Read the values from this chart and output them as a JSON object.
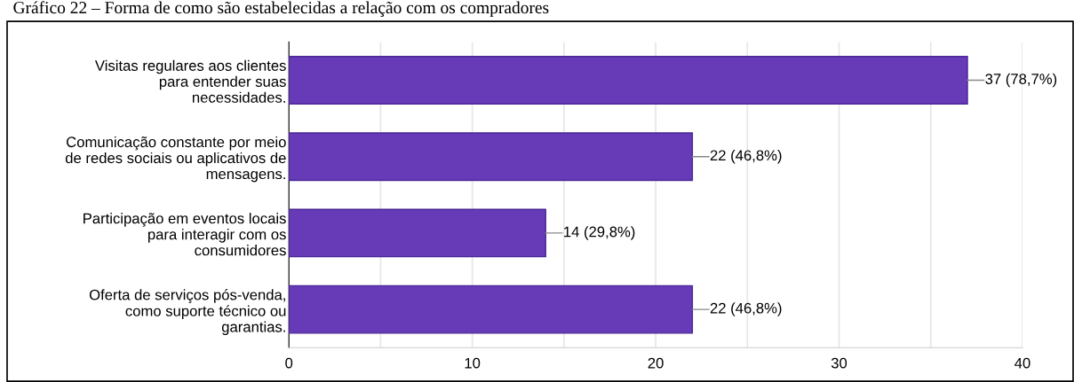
{
  "chart_data": {
    "type": "bar",
    "orientation": "horizontal",
    "title": "Gráfico 22 – Forma de como são estabelecidas a relação com os compradores",
    "categories": [
      "Visitas regulares aos clientes\npara entender suas\nnecessidades.",
      "Comunicação constante por meio\nde redes sociais ou aplicativos de\nmensagens.",
      "Participação em eventos locais\npara interagir com os\nconsumidores",
      "Oferta de serviços pós-venda,\ncomo suporte técnico ou\ngarantias."
    ],
    "values": [
      37,
      22,
      14,
      22
    ],
    "value_labels": [
      "37 (78,7%)",
      "22 (46,8%)",
      "14 (29,8%)",
      "22 (46,8%)"
    ],
    "color": "#673ab7",
    "xlim": [
      0,
      40
    ],
    "xticks": [
      0,
      {
        "value": 5,
        "label": null
      },
      10,
      {
        "value": 15,
        "label": null
      },
      20,
      {
        "value": 25,
        "label": null
      },
      30,
      {
        "value": 35,
        "label": null
      },
      40
    ],
    "grid": "x"
  }
}
